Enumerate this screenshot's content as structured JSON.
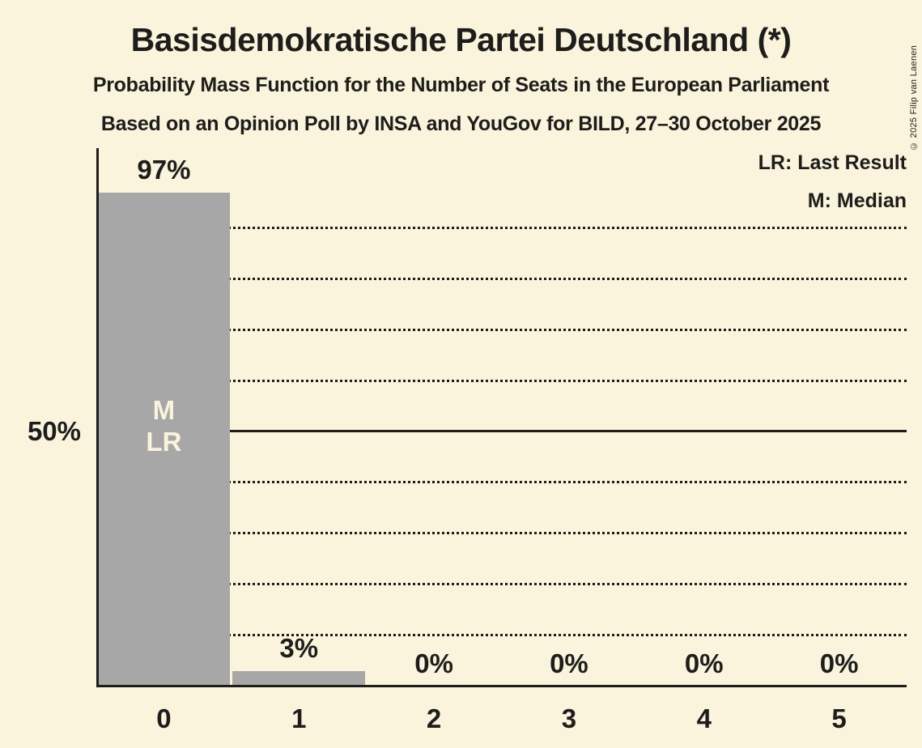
{
  "page": {
    "background_color": "#FAF4DC",
    "text_color": "#1D1D1B",
    "bar_color": "#A7A7A7"
  },
  "header": {
    "title": "Basisdemokratische Partei Deutschland (*)",
    "subtitle1": "Probability Mass Function for the Number of Seats in the European Parliament",
    "subtitle2": "Based on an Opinion Poll by INSA and YouGov for BILD, 27–30 October 2025"
  },
  "legend": {
    "last_result": "LR: Last Result",
    "median": "M: Median"
  },
  "copyright": "© 2025 Filip van Laenen",
  "chart_data": {
    "type": "bar",
    "title": "Basisdemokratische Partei Deutschland (*)",
    "categories": [
      "0",
      "1",
      "2",
      "3",
      "4",
      "5"
    ],
    "values": [
      97,
      3,
      0,
      0,
      0,
      0
    ],
    "value_labels": [
      "97%",
      "3%",
      "0%",
      "0%",
      "0%",
      "0%"
    ],
    "xlabel": "",
    "ylabel": "",
    "ylim": [
      0,
      105.7
    ],
    "y_axis_label": {
      "value": 50,
      "label": "50%"
    },
    "gridlines_pct": [
      10,
      20,
      30,
      40,
      60,
      70,
      80,
      90
    ],
    "solid_line_pct": 50,
    "grid": "horizontal dotted, solid at 50%",
    "legend_position": "top-right",
    "bar_markers": {
      "category": "0",
      "lines": [
        "M",
        "LR"
      ]
    }
  }
}
